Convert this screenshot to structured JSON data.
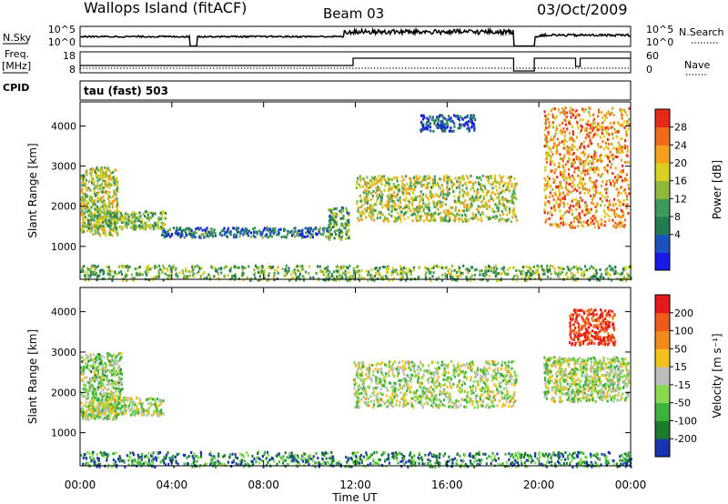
{
  "header": {
    "title": "Wallops Island (fitACF)",
    "beam": "Beam 03",
    "date": "03/Oct/2009"
  },
  "noise_panel": {
    "left_label": "N.Sky",
    "left_ticks": [
      "10^5",
      "10^0"
    ],
    "right_ticks": [
      "10^5",
      "10^0"
    ],
    "right_label": "N.Search"
  },
  "freq_panel": {
    "left_label_1": "Freq.",
    "left_label_2": "[MHz]",
    "left_ticks": [
      "18",
      "8"
    ],
    "right_ticks": [
      "60",
      "0"
    ],
    "right_label": "Nave",
    "cpid_label": "CPID",
    "cpid_text": "tau (fast) 503"
  },
  "chart_data": [
    {
      "type": "heatmap",
      "name": "power",
      "xlabel": "Time UT",
      "ylabel": "Slant Range [km]",
      "x_ticks": [
        "00:00",
        "04:00",
        "08:00",
        "12:00",
        "16:00",
        "20:00",
        "00:00"
      ],
      "xlim": [
        0,
        24
      ],
      "y_ticks": [
        "4000",
        "3000",
        "2000",
        "1000"
      ],
      "y_tick_values": [
        4000,
        3000,
        2000,
        1000
      ],
      "ylim": [
        180,
        4600
      ],
      "colorbar": {
        "label": "Power [dB]",
        "ticks": [
          "28",
          "24",
          "20",
          "16",
          "12",
          "8",
          "4"
        ],
        "colors": [
          "#1a1ae6",
          "#1a52c2",
          "#247a52",
          "#3d9a5a",
          "#8fb83d",
          "#d9cf1f",
          "#f5a21a",
          "#f06a1a",
          "#e62a1a"
        ]
      },
      "features": [
        {
          "t": [
            0.0,
            1.6
          ],
          "range": [
            1300,
            3000
          ],
          "level": 0.55
        },
        {
          "t": [
            0.3,
            3.7
          ],
          "range": [
            1450,
            1900
          ],
          "level": 0.45
        },
        {
          "t": [
            3.5,
            10.8
          ],
          "range": [
            1250,
            1500
          ],
          "level": 0.25
        },
        {
          "t": [
            10.8,
            11.7
          ],
          "range": [
            1200,
            2000
          ],
          "level": 0.4
        },
        {
          "t": [
            12.0,
            19.0
          ],
          "range": [
            1650,
            2800
          ],
          "level": 0.55
        },
        {
          "t": [
            14.8,
            17.2
          ],
          "range": [
            3900,
            4300
          ],
          "level": 0.2
        },
        {
          "t": [
            20.2,
            23.9
          ],
          "range": [
            1500,
            4500
          ],
          "level": 0.75
        },
        {
          "t": [
            0.0,
            24.0
          ],
          "range": [
            180,
            550
          ],
          "level": 0.45
        }
      ]
    },
    {
      "type": "heatmap",
      "name": "velocity",
      "xlabel": "Time UT",
      "ylabel": "Slant Range [km]",
      "x_ticks": [
        "00:00",
        "04:00",
        "08:00",
        "12:00",
        "16:00",
        "20:00",
        "00:00"
      ],
      "xlim": [
        0,
        24
      ],
      "y_ticks": [
        "4000",
        "3000",
        "2000",
        "1000"
      ],
      "y_tick_values": [
        4000,
        3000,
        2000,
        1000
      ],
      "ylim": [
        180,
        4600
      ],
      "colorbar": {
        "label": "Velocity [m s⁻¹]",
        "ticks": [
          "200",
          "100",
          "50",
          "15",
          "-15",
          "-50",
          "-100",
          "-200"
        ],
        "colors": [
          "#1a33b3",
          "#1a7a2e",
          "#3db33d",
          "#88d94d",
          "#bdbdbd",
          "#f2c21a",
          "#f28a1a",
          "#f25a1a",
          "#e61a1a"
        ]
      },
      "features": [
        {
          "t": [
            0.0,
            1.8
          ],
          "range": [
            1350,
            3000
          ],
          "level": 0.4
        },
        {
          "t": [
            0.4,
            3.6
          ],
          "range": [
            1450,
            1900
          ],
          "level": 0.45
        },
        {
          "t": [
            11.9,
            19.0
          ],
          "range": [
            1650,
            2800
          ],
          "level": 0.45
        },
        {
          "t": [
            20.2,
            23.9
          ],
          "range": [
            1800,
            2900
          ],
          "level": 0.45
        },
        {
          "t": [
            21.3,
            23.3
          ],
          "range": [
            3200,
            4100
          ],
          "level": 0.9
        },
        {
          "t": [
            0.0,
            24.0
          ],
          "range": [
            180,
            550
          ],
          "level": 0.2
        }
      ]
    }
  ]
}
